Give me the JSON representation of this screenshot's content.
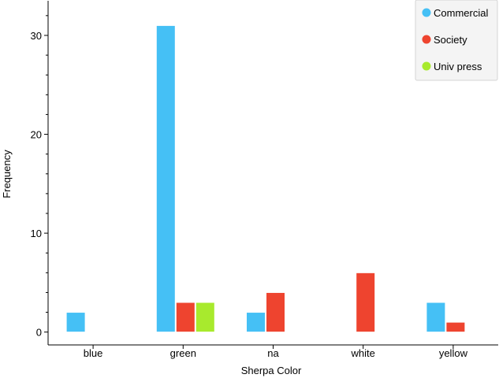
{
  "chart_data": {
    "type": "bar",
    "xlabel": "Sherpa Color",
    "ylabel": "Frequency",
    "categories": [
      "blue",
      "green",
      "na",
      "white",
      "yellow"
    ],
    "series": [
      {
        "name": "Commercial",
        "values": [
          2,
          31,
          2,
          0,
          3
        ],
        "color": "#45C0F5"
      },
      {
        "name": "Society",
        "values": [
          0,
          3,
          4,
          6,
          1
        ],
        "color": "#EE442F"
      },
      {
        "name": "Univ press",
        "values": [
          0,
          3,
          0,
          0,
          0
        ],
        "color": "#A8EA2D"
      }
    ],
    "yticks": [
      0,
      10,
      20,
      30
    ],
    "ylim": [
      -1.3,
      33.5
    ],
    "grid": false,
    "legend_position": "top-right"
  }
}
